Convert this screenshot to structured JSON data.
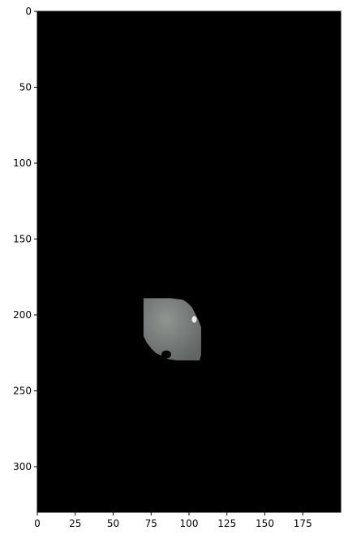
{
  "chart_data": {
    "type": "heatmap",
    "colormap": "gray",
    "background_color": "#000000",
    "image_width": 200,
    "image_height": 330,
    "xlim": [
      0,
      200
    ],
    "ylim": [
      330,
      0
    ],
    "x_ticks": [
      0,
      25,
      50,
      75,
      100,
      125,
      150,
      175
    ],
    "x_tick_labels": [
      "0",
      "25",
      "50",
      "75",
      "100",
      "125",
      "150",
      "175"
    ],
    "y_ticks": [
      0,
      50,
      100,
      150,
      200,
      250,
      300
    ],
    "y_tick_labels": [
      "0",
      "50",
      "100",
      "150",
      "200",
      "250",
      "300"
    ],
    "region": {
      "shape": "irregular blob",
      "x_range": [
        70,
        108
      ],
      "y_range": [
        189,
        230
      ],
      "fill_color": "#7a7f7d",
      "highlight_color": "#ffffff",
      "outline": [
        [
          70,
          189
        ],
        [
          88,
          189
        ],
        [
          96,
          190
        ],
        [
          99,
          192
        ],
        [
          102,
          195
        ],
        [
          104,
          199
        ],
        [
          106,
          203
        ],
        [
          108,
          208
        ],
        [
          108,
          214
        ],
        [
          108,
          220
        ],
        [
          108,
          226
        ],
        [
          107,
          230
        ],
        [
          92,
          230
        ],
        [
          86,
          229
        ],
        [
          82,
          227
        ],
        [
          78,
          225
        ],
        [
          75,
          222
        ],
        [
          72,
          218
        ],
        [
          70,
          214
        ],
        [
          70,
          200
        ]
      ],
      "holes": [
        {
          "x": 85,
          "y": 226
        }
      ]
    },
    "title": "",
    "xlabel": "",
    "ylabel": ""
  }
}
